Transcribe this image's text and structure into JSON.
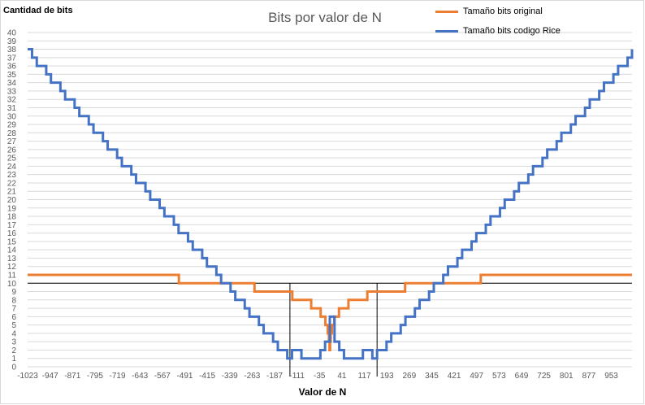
{
  "chart_data": {
    "type": "line",
    "title": "Bits por valor de N",
    "xlabel": "Valor de N",
    "ylabel": "Cantidad de bits",
    "ylim": [
      0,
      40
    ],
    "xlim": [
      -1023,
      1023
    ],
    "y_ticks": [
      "0",
      "1",
      "2",
      "3",
      "4",
      "5",
      "6",
      "7",
      "8",
      "9",
      "10",
      "11",
      "12",
      "13",
      "14",
      "15",
      "16",
      "17",
      "18",
      "19",
      "20",
      "21",
      "22",
      "23",
      "24",
      "25",
      "26",
      "27",
      "28",
      "29",
      "30",
      "31",
      "32",
      "33",
      "34",
      "35",
      "36",
      "37",
      "38",
      "39",
      "40"
    ],
    "x_ticks": [
      "-1023",
      "-947",
      "-871",
      "-795",
      "-719",
      "-643",
      "-567",
      "-491",
      "-415",
      "-339",
      "-263",
      "-187",
      "-111",
      "-35",
      "41",
      "117",
      "193",
      "269",
      "345",
      "421",
      "497",
      "573",
      "649",
      "725",
      "801",
      "877",
      "953"
    ],
    "grid": true,
    "legend_position": "top-right",
    "series": [
      {
        "name": "Tamaño bits original",
        "color": "#ed7d31",
        "x": [
          -1023,
          -512,
          -511,
          -256,
          -255,
          -128,
          -127,
          -64,
          -63,
          -32,
          -31,
          -16,
          -15,
          -8,
          -7,
          -4,
          -3,
          -2,
          -1,
          0,
          1,
          2,
          3,
          4,
          7,
          8,
          15,
          16,
          31,
          32,
          63,
          64,
          127,
          128,
          255,
          256,
          511,
          512,
          1023
        ],
        "y": [
          11,
          11,
          10,
          10,
          9,
          9,
          8,
          8,
          7,
          7,
          6,
          6,
          5,
          5,
          4,
          4,
          3,
          3,
          2,
          2,
          3,
          3,
          4,
          4,
          5,
          5,
          6,
          6,
          7,
          7,
          8,
          8,
          9,
          9,
          10,
          10,
          11,
          11,
          11
        ]
      },
      {
        "name": "Tamaño bits codigo Rice",
        "color": "#4472c4",
        "x": [
          -1023,
          -1008,
          -992,
          -976,
          -960,
          -944,
          -928,
          -912,
          -896,
          -880,
          -864,
          -848,
          -832,
          -816,
          -800,
          -784,
          -768,
          -752,
          -736,
          -720,
          -704,
          -688,
          -672,
          -656,
          -640,
          -624,
          -608,
          -592,
          -576,
          -560,
          -544,
          -528,
          -512,
          -496,
          -480,
          -464,
          -448,
          -432,
          -416,
          -400,
          -384,
          -368,
          -352,
          -336,
          -320,
          -304,
          -288,
          -272,
          -256,
          -240,
          -224,
          -208,
          -192,
          -176,
          -160,
          -144,
          -128,
          -112,
          -96,
          -80,
          -64,
          -48,
          -32,
          -16,
          0,
          16,
          32,
          48,
          64,
          80,
          96,
          112,
          128,
          144,
          160,
          176,
          192,
          208,
          224,
          240,
          256,
          272,
          288,
          304,
          320,
          336,
          352,
          368,
          384,
          400,
          416,
          432,
          448,
          464,
          480,
          496,
          512,
          528,
          544,
          560,
          576,
          592,
          608,
          624,
          640,
          656,
          672,
          688,
          704,
          720,
          736,
          752,
          768,
          784,
          800,
          816,
          832,
          848,
          864,
          880,
          896,
          912,
          928,
          944,
          960,
          976,
          992,
          1008,
          1023
        ],
        "y": [
          38,
          37,
          36,
          36,
          35,
          34,
          34,
          33,
          32,
          32,
          31,
          30,
          30,
          29,
          28,
          28,
          27,
          26,
          26,
          25,
          24,
          24,
          23,
          22,
          22,
          21,
          20,
          20,
          19,
          18,
          18,
          17,
          16,
          16,
          15,
          14,
          14,
          13,
          12,
          12,
          11,
          10,
          10,
          9,
          8,
          8,
          7,
          6,
          6,
          5,
          4,
          4,
          3,
          2,
          2,
          1,
          2,
          2,
          1,
          1,
          1,
          1,
          2,
          3,
          6,
          3,
          2,
          1,
          1,
          1,
          1,
          2,
          2,
          1,
          2,
          2,
          3,
          4,
          4,
          5,
          6,
          6,
          7,
          8,
          8,
          9,
          10,
          10,
          11,
          12,
          12,
          13,
          14,
          14,
          15,
          16,
          16,
          17,
          18,
          18,
          19,
          20,
          20,
          21,
          22,
          22,
          23,
          24,
          24,
          25,
          26,
          26,
          27,
          28,
          28,
          29,
          30,
          30,
          31,
          32,
          32,
          33,
          34,
          34,
          35,
          36,
          36,
          37,
          38
        ]
      }
    ],
    "reference_lines": {
      "horizontal_y": 10,
      "vertical_x": [
        -135,
        160
      ]
    }
  }
}
